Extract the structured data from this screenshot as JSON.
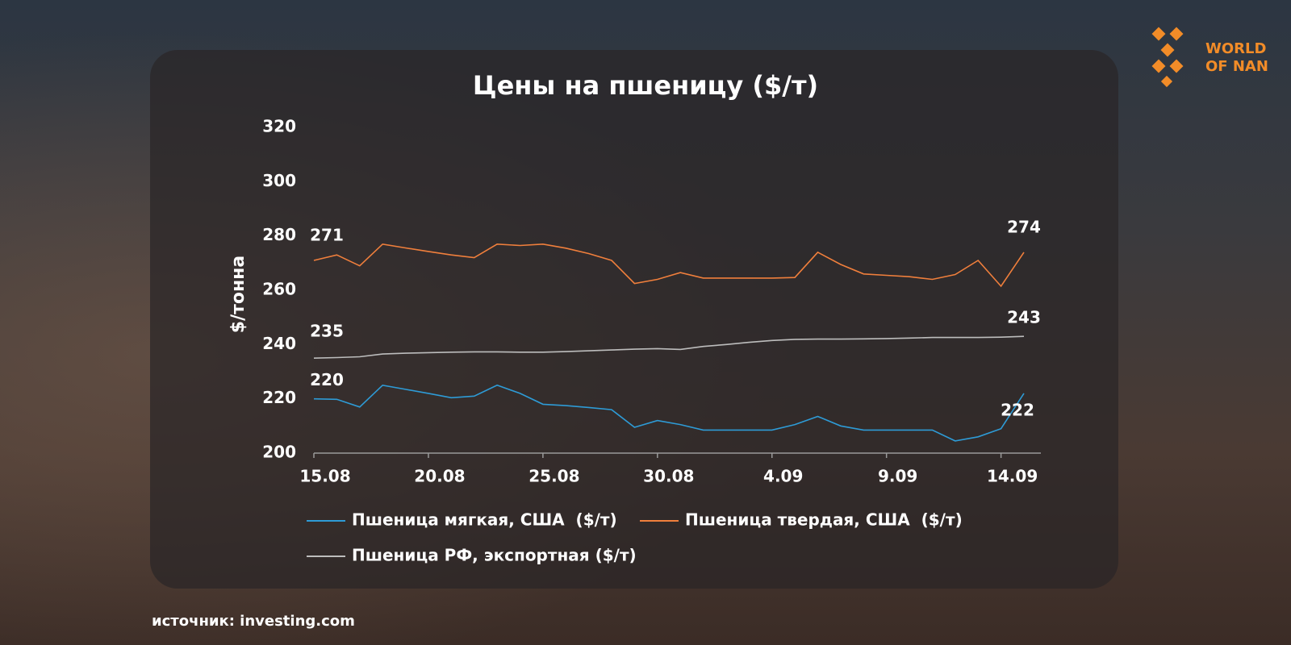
{
  "chart_data": {
    "type": "line",
    "title": "Цены на пшеницу ($/т)",
    "y_label": "$/тонна",
    "source": "источник: investing.com",
    "logo": [
      "WORLD",
      "OF NAN"
    ],
    "categories": [
      "15.08",
      null,
      null,
      null,
      null,
      "20.08",
      null,
      null,
      null,
      null,
      "25.08",
      null,
      null,
      null,
      null,
      "30.08",
      null,
      null,
      null,
      null,
      "4.09",
      null,
      null,
      null,
      null,
      "9.09",
      null,
      null,
      null,
      null,
      "14.09",
      null
    ],
    "ylim": [
      200,
      320
    ],
    "yticks": [
      200,
      220,
      240,
      260,
      280,
      300,
      320
    ],
    "series": [
      {
        "name": "Пшеница мягкая, США  ($/т)",
        "color": "#2e9bd6",
        "values": [
          220,
          219.8,
          217,
          225,
          223.5,
          222,
          220.4,
          221,
          225,
          222,
          218,
          217.5,
          216.8,
          216,
          209.5,
          212,
          210.5,
          208.5,
          208.5,
          208.5,
          208.5,
          210.5,
          213.5,
          210,
          208.5,
          208.5,
          208.5,
          208.5,
          204.5,
          206,
          209,
          222
        ],
        "value_labels": [
          "220",
          null,
          null,
          null,
          null,
          null,
          null,
          null,
          null,
          null,
          null,
          null,
          null,
          null,
          null,
          null,
          null,
          null,
          null,
          null,
          null,
          null,
          null,
          null,
          null,
          null,
          null,
          null,
          null,
          null,
          null,
          "222"
        ]
      },
      {
        "name": "Пшеница твердая, США  ($/т)",
        "color": "#f07f3c",
        "values": [
          271,
          273,
          269,
          277,
          275.6,
          274.3,
          273,
          272,
          277,
          276.5,
          277,
          275.5,
          273.5,
          271,
          262.5,
          264,
          266.5,
          264.5,
          264.5,
          264.5,
          264.5,
          264.7,
          274,
          269.5,
          266,
          265.5,
          265,
          264,
          265.8,
          271,
          261.5,
          274
        ],
        "value_labels": [
          "271",
          null,
          null,
          null,
          null,
          null,
          null,
          null,
          null,
          null,
          null,
          null,
          null,
          null,
          null,
          null,
          null,
          null,
          null,
          null,
          null,
          null,
          null,
          null,
          null,
          null,
          null,
          null,
          null,
          null,
          null,
          "274"
        ]
      },
      {
        "name": "Пшеница РФ, экспортная ($/т)",
        "color": "#bdbdbd",
        "values": [
          235,
          235.2,
          235.5,
          236.5,
          236.8,
          237,
          237.2,
          237.3,
          237.3,
          237.2,
          237.2,
          237.4,
          237.7,
          238,
          238.3,
          238.5,
          238.2,
          239.3,
          240,
          240.8,
          241.5,
          241.9,
          242,
          242,
          242.1,
          242.2,
          242.4,
          242.6,
          242.6,
          242.6,
          242.7,
          243
        ],
        "value_labels": [
          "235",
          null,
          null,
          null,
          null,
          null,
          null,
          null,
          null,
          null,
          null,
          null,
          null,
          null,
          null,
          null,
          null,
          null,
          null,
          null,
          null,
          null,
          null,
          null,
          null,
          null,
          null,
          null,
          null,
          null,
          null,
          "243"
        ]
      }
    ]
  }
}
